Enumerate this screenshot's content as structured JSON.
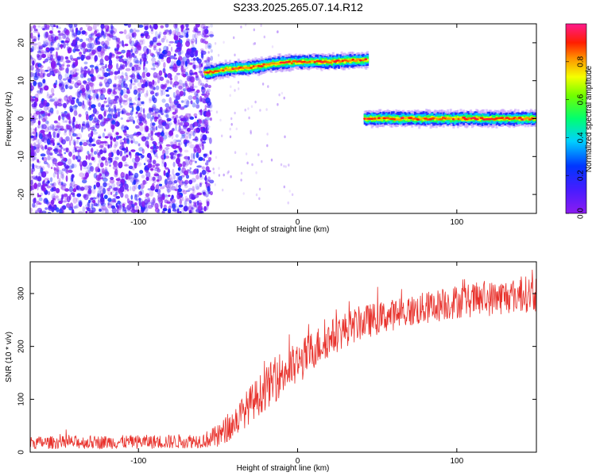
{
  "figure": {
    "title": "S233.2025.265.07.14.R12"
  },
  "chart_data": [
    {
      "type": "heatmap",
      "title": "",
      "xlabel": "Height of straight line (km)",
      "ylabel": "Frequency (Hz)",
      "xlim": [
        -168,
        150
      ],
      "ylim": [
        -25,
        25
      ],
      "xticks": [
        -100,
        0,
        100
      ],
      "xtick_labels": [
        "-100",
        "0",
        "100"
      ],
      "yticks": [
        -20,
        -10,
        0,
        10,
        20
      ],
      "ytick_labels": [
        "-20",
        "-10",
        "0",
        "10",
        "20"
      ],
      "grid": false,
      "colorbar": {
        "label": "Normalized spectral amplitude",
        "range": [
          0,
          1
        ],
        "ticks": [
          0.0,
          0.2,
          0.4,
          0.6,
          0.8
        ],
        "tick_labels": [
          "0.0",
          "0.2",
          "0.4",
          "0.6",
          "0.8"
        ],
        "colormap": "rainbow (violet → blue → cyan → green → yellow → orange → red → magenta)"
      },
      "regions": [
        {
          "name": "noise",
          "x_range": [
            -168,
            -58
          ],
          "frequency_range": [
            -25,
            25
          ],
          "amplitude": "low (0.0–0.3)"
        },
        {
          "name": "signal-1",
          "x_range": [
            -58,
            44
          ],
          "frequency_profile": [
            [
              -58,
              12
            ],
            [
              -45,
              13
            ],
            [
              -30,
              13.5
            ],
            [
              -15,
              14.5
            ],
            [
              0,
              15
            ],
            [
              20,
              15
            ],
            [
              44,
              15.5
            ]
          ],
          "amplitude": "high (≈0.9)"
        },
        {
          "name": "signal-2",
          "x_range": [
            42,
            150
          ],
          "frequency_profile": [
            [
              42,
              0
            ],
            [
              100,
              0
            ],
            [
              150,
              0
            ]
          ],
          "amplitude": "high (≈0.9)"
        }
      ]
    },
    {
      "type": "line",
      "title": "",
      "xlabel": "Height of straight line (km)",
      "ylabel": "SNR (10 * v/v)",
      "xlim": [
        -168,
        150
      ],
      "ylim": [
        0,
        360
      ],
      "xticks": [
        -100,
        0,
        100
      ],
      "xtick_labels": [
        "-100",
        "0",
        "100"
      ],
      "yticks": [
        0,
        100,
        200,
        300
      ],
      "ytick_labels": [
        "0",
        "100",
        "200",
        "300"
      ],
      "grid": false,
      "series": [
        {
          "color": "#e8322c",
          "trend": [
            [
              -168,
              18
            ],
            [
              -120,
              19
            ],
            [
              -80,
              20
            ],
            [
              -60,
              22
            ],
            [
              -50,
              30
            ],
            [
              -40,
              55
            ],
            [
              -30,
              90
            ],
            [
              -20,
              120
            ],
            [
              -10,
              150
            ],
            [
              0,
              165
            ],
            [
              10,
              195
            ],
            [
              20,
              215
            ],
            [
              30,
              232
            ],
            [
              40,
              245
            ],
            [
              60,
              260
            ],
            [
              80,
              272
            ],
            [
              100,
              285
            ],
            [
              120,
              290
            ],
            [
              140,
              298
            ],
            [
              150,
              300
            ]
          ],
          "noise_amplitude": [
            [
              -168,
              12
            ],
            [
              -60,
              14
            ],
            [
              -40,
              30
            ],
            [
              -10,
              45
            ],
            [
              20,
              35
            ],
            [
              60,
              30
            ],
            [
              150,
              35
            ]
          ]
        }
      ]
    }
  ]
}
